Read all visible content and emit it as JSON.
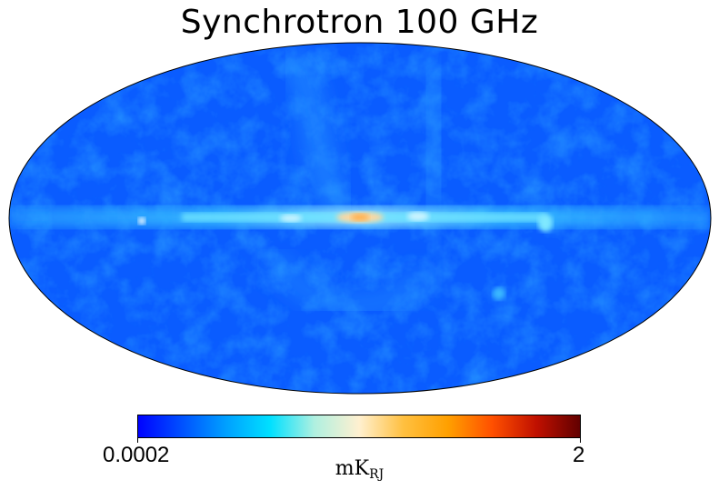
{
  "title": "Synchrotron 100 GHz",
  "projection": "mollweide",
  "colormap": {
    "name": "planck",
    "stops": [
      "#0000ff",
      "#0050ff",
      "#00a0ff",
      "#00e0ff",
      "#b0f0e0",
      "#fff0d0",
      "#ffc040",
      "#ffa000",
      "#ff5000",
      "#c01000",
      "#600000"
    ]
  },
  "colorbar": {
    "min_label": "0.0002",
    "max_label": "2",
    "unit_main": "mK",
    "unit_sub": "RJ",
    "scale": "log"
  },
  "colors": {
    "background_map": "#0a5cff",
    "galactic_plane": "#4fd8ff",
    "hotspot": "#ffc070"
  }
}
